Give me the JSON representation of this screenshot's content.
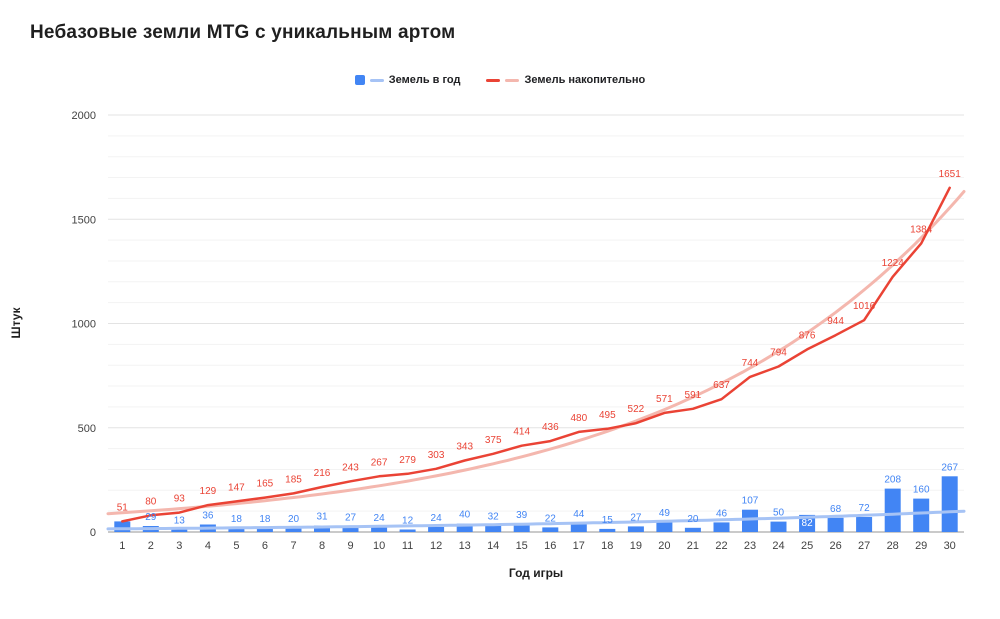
{
  "title": "Небазовые земли MTG с уникальным артом",
  "legend": {
    "items": [
      {
        "label": "Земель в год"
      },
      {
        "label": "Земель накопительно"
      }
    ]
  },
  "chart_data": {
    "type": "combo",
    "title": "Небазовые земли MTG с уникальным артом",
    "xlabel": "Год игры",
    "ylabel": "Штук",
    "categories": [
      1,
      2,
      3,
      4,
      5,
      6,
      7,
      8,
      9,
      10,
      11,
      12,
      13,
      14,
      15,
      16,
      17,
      18,
      19,
      20,
      21,
      22,
      23,
      24,
      25,
      26,
      27,
      28,
      29,
      30
    ],
    "series": [
      {
        "name": "Земель в год",
        "type": "bar",
        "color": "#4285f4",
        "trend_color": "#a6c3f5",
        "trendline": "exponential",
        "values": [
          51,
          29,
          13,
          36,
          18,
          18,
          20,
          31,
          27,
          24,
          12,
          24,
          40,
          32,
          39,
          22,
          44,
          15,
          27,
          49,
          20,
          46,
          107,
          50,
          82,
          68,
          72,
          208,
          160,
          267
        ]
      },
      {
        "name": "Земель накопительно",
        "type": "line",
        "color": "#ea4335",
        "trend_color": "#f4b7ae",
        "trendline": "exponential",
        "values": [
          51,
          80,
          93,
          129,
          147,
          165,
          185,
          216,
          243,
          267,
          279,
          303,
          343,
          375,
          414,
          436,
          480,
          495,
          522,
          571,
          591,
          637,
          744,
          794,
          876,
          944,
          1016,
          1224,
          1384,
          1651
        ]
      }
    ],
    "ylim": [
      0,
      2000
    ],
    "yticks": [
      0,
      500,
      1000,
      1500,
      2000
    ],
    "minor_grid_step": 100,
    "grid": true,
    "legend_position": "top",
    "label_options": {
      "hide_bar_label_indices": [
        0
      ],
      "inside_bar_label_indices": [
        24
      ],
      "inside_label_color": "#ffffff"
    },
    "axis_colors": {
      "tick_label": "#424242",
      "baseline": "#949494",
      "major_grid": "#e3e3e3",
      "minor_grid": "#f3f3f3"
    }
  }
}
